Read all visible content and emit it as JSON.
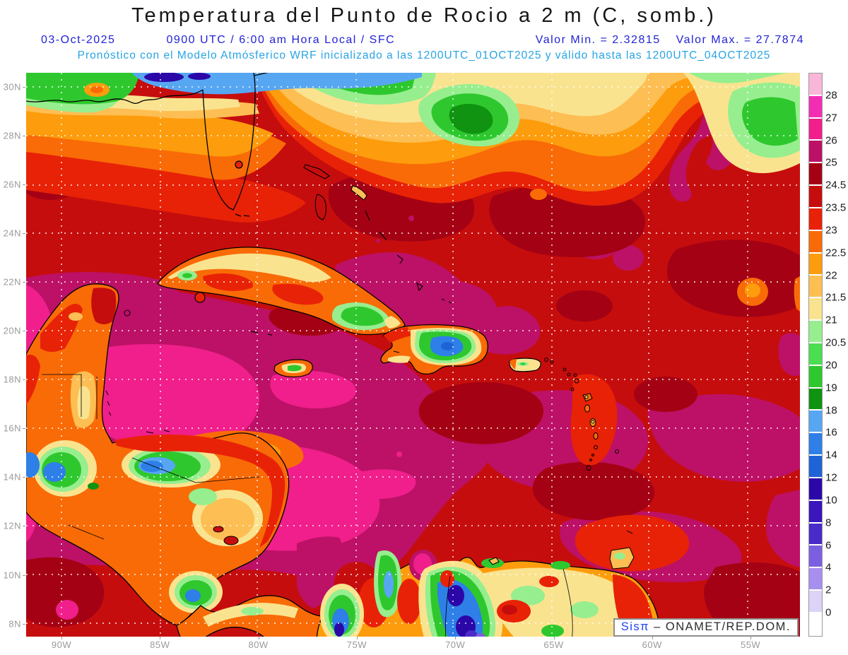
{
  "header": {
    "title": "Temperatura del Punto de Rocio a 2 m (C, somb.)",
    "date": "03-Oct-2025",
    "time_line": "0900 UTC / 6:00 am Hora Local / SFC",
    "valor_min": "Valor Min. = 2.32815",
    "valor_max": "Valor Max. = 27.7874",
    "model_line": "Pronóstico con el Modelo Atmósferico WRF inicializado a las 1200UTC_01OCT2025 y válido hasta las  1200UTC_04OCT2025"
  },
  "axes": {
    "lat": [
      "30N",
      "28N",
      "26N",
      "24N",
      "22N",
      "20N",
      "18N",
      "16N",
      "14N",
      "12N",
      "10N",
      "8N"
    ],
    "lon": [
      "90W",
      "85W",
      "80W",
      "75W",
      "70W",
      "65W",
      "60W",
      "55W"
    ]
  },
  "colorbar": {
    "labels": [
      "28",
      "27",
      "26",
      "25",
      "24.5",
      "23.5",
      "23",
      "22.5",
      "22",
      "21.5",
      "21",
      "20.5",
      "20",
      "19",
      "18",
      "16",
      "14",
      "12",
      "10",
      "8",
      "6",
      "4",
      "2",
      "0"
    ],
    "colors": [
      "#F9B6D9",
      "#F32DB3",
      "#F01F8B",
      "#BC1166",
      "#A40214",
      "#C60D0D",
      "#E82207",
      "#F96B07",
      "#FD9C0C",
      "#FDBE53",
      "#FAE38F",
      "#97EE8F",
      "#4ADE50",
      "#2EC82E",
      "#0F9310",
      "#57A6F2",
      "#2E7FE8",
      "#1F64D6",
      "#2B07A8",
      "#3A16BC",
      "#4A2AC8",
      "#7C5FE0",
      "#A78FEF",
      "#DDD3F8",
      "#FFFFFF"
    ]
  },
  "watermark": {
    "app": "Sisπ",
    "org": "– ONAMET/REP.DOM."
  }
}
